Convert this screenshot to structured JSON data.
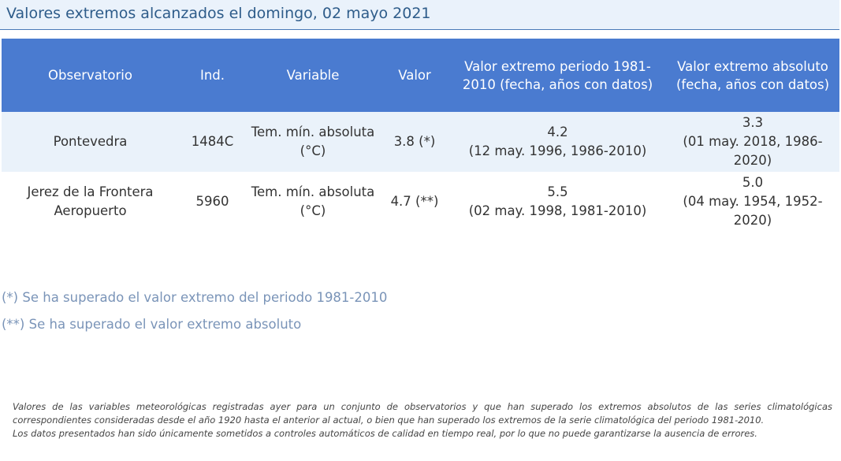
{
  "header": {
    "title": "Valores extremos alcanzados el domingo, 02 mayo 2021"
  },
  "table": {
    "columns": [
      "Observatorio",
      "Ind.",
      "Variable",
      "Valor",
      "Valor extremo periodo 1981-2010 (fecha, años con datos)",
      "Valor extremo absoluto (fecha, años con datos)"
    ],
    "rows": [
      {
        "observatorio": "Pontevedra",
        "ind": "1484C",
        "variable": "Tem. mín. absoluta (°C)",
        "valor": "3.8 (*)",
        "periodo_valor": "4.2",
        "periodo_detalle": "(12 may. 1996, 1986-2010)",
        "absoluto_valor": "3.3",
        "absoluto_detalle": "(01 may. 2018, 1986-2020)"
      },
      {
        "observatorio": "Jerez de la Frontera Aeropuerto",
        "ind": "5960",
        "variable": "Tem. mín. absoluta (°C)",
        "valor": "4.7 (**)",
        "periodo_valor": "5.5",
        "periodo_detalle": "(02 may. 1998, 1981-2010)",
        "absoluto_valor": "5.0",
        "absoluto_detalle": "(04 may. 1954, 1952-2020)"
      }
    ]
  },
  "notes": [
    "(*) Se ha superado el valor extremo del periodo 1981-2010",
    "(**) Se ha superado el valor extremo absoluto"
  ],
  "disclaimer": {
    "line1": "Valores de las variables meteorológicas registradas ayer para un conjunto de observatorios y que han superado los extremos absolutos de las series climatológicas",
    "line2": "correspondientes consideradas desde el año 1920 hasta el anterior al actual, o bien que han superado los extremos de la serie climatológica del periodo 1981-2010.",
    "line3": "Los datos presentados han sido únicamente sometidos a controles automáticos de calidad en tiempo real, por lo que no puede garantizarse la ausencia de errores."
  },
  "colors": {
    "header_bg": "#4a7bd0",
    "row_alt_bg": "#eaf2fa",
    "title_color": "#2e5c8a",
    "note_color": "#7a94b8"
  }
}
